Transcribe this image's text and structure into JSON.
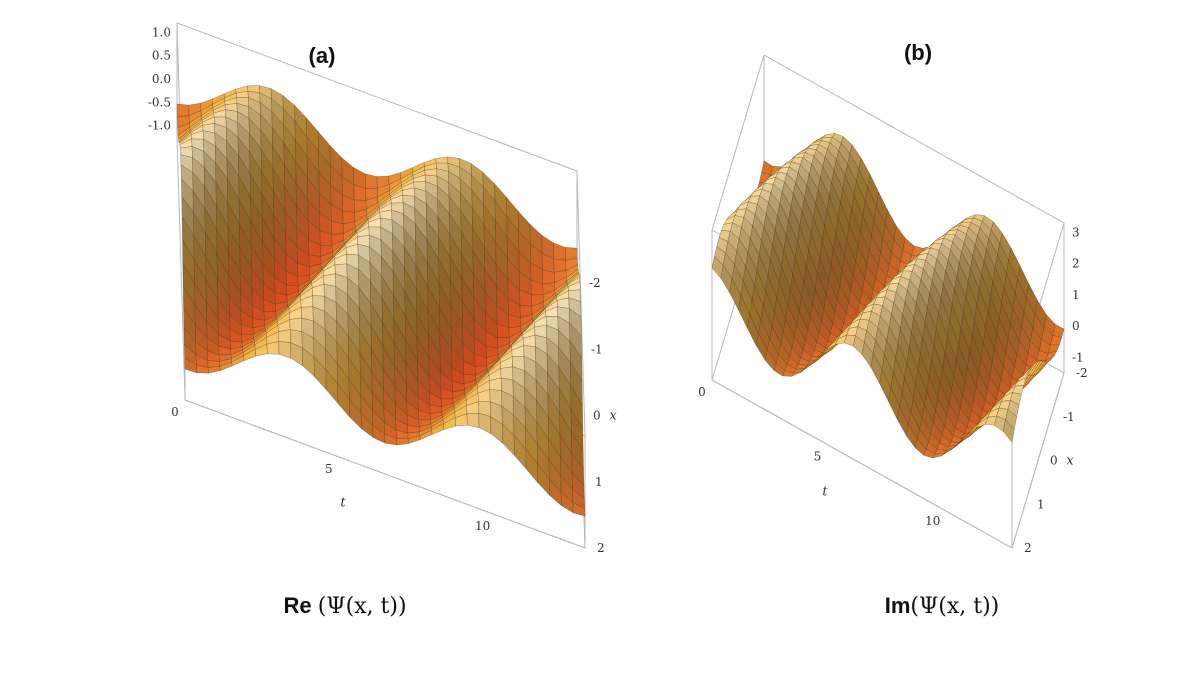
{
  "figure": {
    "panel_a_label": "(a)",
    "panel_b_label": "(b)",
    "caption_a": {
      "prefix": "Re ",
      "math": "(Ψ(x, t))"
    },
    "caption_b": {
      "prefix": "Im",
      "math": "(Ψ(x, t))"
    }
  },
  "colors": {
    "peak": "#fbf4dc",
    "mid": "#f3b340",
    "trough": "#d1361a",
    "dark": "#3c2e18",
    "mesh": "#3a2a12",
    "box": "#b8b8b8"
  },
  "chart_data": [
    {
      "type": "surface3d",
      "panel": "(a)",
      "title": "Re (Ψ(x, t))",
      "xlabel": "x",
      "ylabel": "t",
      "zlabel": "",
      "x_range": [
        -2,
        2
      ],
      "t_range": [
        0,
        13
      ],
      "z_range": [
        -1.2,
        1.2
      ],
      "x_ticks": [
        "-2",
        "-1",
        "0",
        "1",
        "2"
      ],
      "t_ticks": [
        "0",
        "5",
        "10"
      ],
      "z_ticks": [
        "1.0",
        "0.5",
        "0.0",
        "-0.5",
        "-1.0"
      ],
      "function": "cos(1.5*x + t)*cos(0.5*x)"
    },
    {
      "type": "surface3d",
      "panel": "(b)",
      "title": "Im(Ψ(x, t))",
      "xlabel": "x",
      "ylabel": "t",
      "zlabel": "",
      "x_range": [
        -2,
        2
      ],
      "t_range": [
        0,
        13
      ],
      "z_range": [
        -1.5,
        3.3
      ],
      "x_ticks": [
        "-2",
        "-1",
        "0",
        "1",
        "2"
      ],
      "t_ticks": [
        "0",
        "5",
        "10"
      ],
      "z_ticks": [
        "-1",
        "0",
        "1",
        "2",
        "3"
      ],
      "function": "1 + 1.6*sin(0.9*x + t)*cos(0.4*x)"
    }
  ]
}
